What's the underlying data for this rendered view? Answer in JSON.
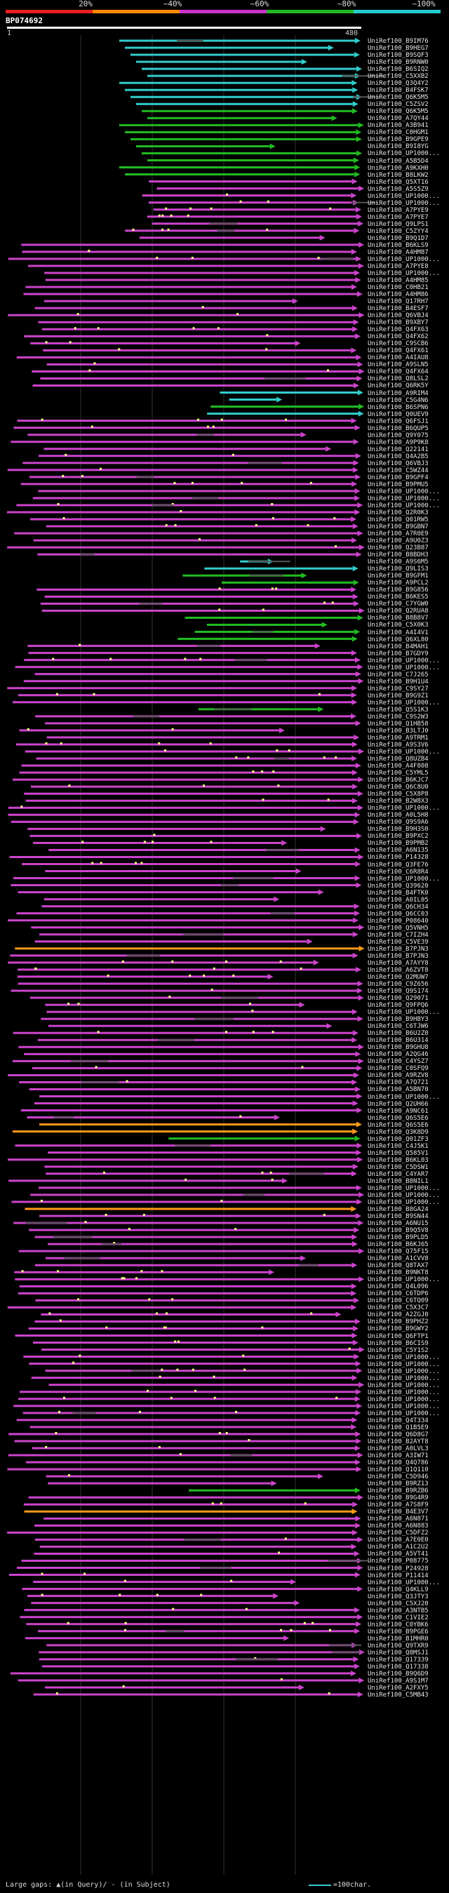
{
  "query": {
    "title": "BP074692",
    "start_label": "1",
    "end_label": "480"
  },
  "scale": {
    "labels": [
      "20%",
      "~40%",
      "~60%",
      "~80%",
      "~100%"
    ],
    "colors": [
      "#e8201f",
      "#ff8a00",
      "#cc33cc",
      "#22bb22",
      "#22cccc"
    ]
  },
  "colors": {
    "red": "#e8201f",
    "orange": "#ff9a1a",
    "purple": "#cc44cc",
    "green": "#22bb22",
    "cyan": "#33cccc",
    "gap_in_query": "#ffff88",
    "gap_in_subject": "#555555"
  },
  "legend": {
    "gaps_text": "Large gaps: ▲(in Query)/ - (in Subject)",
    "scale_text": "=100char."
  },
  "hits": [
    "UniRef100_B9IM76",
    "UniRef100_B9HEG7",
    "UniRef100_B9SQF3",
    "UniRef100_B9RNW0",
    "UniRef100_B6SIQ2",
    "UniRef100_C5XXB2",
    "UniRef100_Q3Q4Y2",
    "UniRef100_B4FSK7",
    "UniRef100_Q6K5M5",
    "UniRef100_C5ZSV2",
    "UniRef100_Q6K5M5",
    "UniRef100_A7QY44",
    "UniRef100_A3B941",
    "UniRef100_C0HGM1",
    "UniRef100_B9GPE9",
    "UniRef100_B9I8YG",
    "UniRef100_UP1000...",
    "UniRef100_A5B5D4",
    "UniRef100_A9KXH0",
    "UniRef100_B8LKW2",
    "UniRef100_Q5XT16",
    "UniRef100_A5S5Z9",
    "UniRef100_UP1000...",
    "UniRef100_UP1000...",
    "UniRef100_A7PYE9",
    "UniRef100_A7PYE7",
    "UniRef100_Q9LPS1",
    "UniRef100_C5ZYY4",
    "UniRef100_B9Q1D7",
    "UniRef100_B6KLS9",
    "UniRef100_A4HM87",
    "UniRef100_UP1000...",
    "UniRef100_A7PYE8",
    "UniRef100_UP1000...",
    "UniRef100_A4HM85",
    "UniRef100_C0HB21",
    "UniRef100_A4HM86",
    "UniRef100_Q17RH7",
    "UniRef100_B4ESF7",
    "UniRef100_Q6VBJ4",
    "UniRef100_B9XBY7",
    "UniRef100_Q4FX63",
    "UniRef100_Q4FX62",
    "UniRef100_C9SCB6",
    "UniRef100_Q4FX61",
    "UniRef100_A4IAU8",
    "UniRef100_A9SLN5",
    "UniRef100_Q4FX64",
    "UniRef100_Q8LSL2",
    "UniRef100_Q6RK5Y",
    "UniRef100_A9RIM4",
    "UniRef100_C5G4N6",
    "UniRef100_B6SPN6",
    "UniRef100_Q0UEV9",
    "UniRef100_Q6FSJ1",
    "UniRef100_B6QUP5",
    "UniRef100_Q9Y075",
    "UniRef100_A9P9K8",
    "UniRef100_Q22141",
    "UniRef100_Q4A2B5",
    "UniRef100_Q6VBJ3",
    "UniRef100_C5WZ44",
    "UniRef100_B9GPF4",
    "UniRef100_B9PMU5",
    "UniRef100_UP1000...",
    "UniRef100_UP1000...",
    "UniRef100_UP1000...",
    "UniRef100_Q2R0K3",
    "UniRef100_Q01RW5",
    "UniRef100_B9GBN7",
    "UniRef100_A7R0E9",
    "UniRef100_A9U0Z3",
    "UniRef100_Q23B87",
    "UniRef100_B8BDH3",
    "UniRef100_A9S6M5",
    "UniRef100_Q9LIS3",
    "UniRef100_B9GFM1",
    "UniRef100_A9PCL2",
    "UniRef100_B9G856",
    "UniRef100_B6KES5",
    "UniRef100_C7YGW0",
    "UniRef100_Q2RUA8",
    "UniRef100_B8B8V7",
    "UniRef100_C5X0K3",
    "UniRef100_A4I4V1",
    "UniRef100_Q6XL80",
    "UniRef100_B4MAH1",
    "UniRef100_B7GDY9",
    "UniRef100_UP1000...",
    "UniRef100_UP1000...",
    "UniRef100_C7J265",
    "UniRef100_B9H1U4",
    "UniRef100_C9SY27",
    "UniRef100_B9G9Z1",
    "UniRef100_UP1000...",
    "UniRef100_Q5S1K3",
    "UniRef100_C9S2W3",
    "UniRef100_Q1HB58",
    "UniRef100_B3LTJ0",
    "UniRef100_A9TRM1",
    "UniRef100_A9S3V6",
    "UniRef100_UP1000...",
    "UniRef100_Q8UZB4",
    "UniRef100_A4F808",
    "UniRef100_C5YML5",
    "UniRef100_B6KJC7",
    "UniRef100_Q6C8U0",
    "UniRef100_C5X8P8",
    "UniRef100_B2W8X3",
    "UniRef100_UP1000...",
    "UniRef100_A0L5H8",
    "UniRef100_Q9S9A6",
    "UniRef100_B9H3S0",
    "UniRef100_B9PXC2",
    "UniRef100_B9PMB2",
    "UniRef100_A6N135",
    "UniRef100_P14328",
    "UniRef100_Q3FE76",
    "UniRef100_C6R8R4",
    "UniRef100_UP1000...",
    "UniRef100_Q39620",
    "UniRef100_B4FTK0",
    "UniRef100_A0IL05",
    "UniRef100_Q6CH34",
    "UniRef100_Q6CC03",
    "UniRef100_P08640",
    "UniRef100_Q5VNH5",
    "UniRef100_C7IZH4",
    "UniRef100_C5VE39",
    "UniRef100_B7PJN3",
    "UniRef100_B7PJN3",
    "UniRef100_A7AYY8",
    "UniRef100_A6ZVT8",
    "UniRef100_Q2MUW7",
    "UniRef100_C9Z656",
    "UniRef100_Q9S174",
    "UniRef100_Q29071",
    "UniRef100_Q9FPQ6",
    "UniRef100_UP1000...",
    "UniRef100_B9HBY3",
    "UniRef100_C6TJW6",
    "UniRef100_B6U2Z0",
    "UniRef100_B6U314",
    "UniRef100_B9GHU8",
    "UniRef100_A2QG46",
    "UniRef100_C4YSZ7",
    "UniRef100_C0SFQ9",
    "UniRef100_A9RZV8",
    "UniRef100_A7Q721",
    "UniRef100_A5BN70",
    "UniRef100_UP1000...",
    "UniRef100_Q2UH66",
    "UniRef100_A9NC61",
    "UniRef100_Q6S5E6",
    "UniRef100_Q6S5E6",
    "UniRef100_Q3K8D9",
    "UniRef100_Q01ZF3",
    "UniRef100_C4J5K1",
    "UniRef100_Q585V1",
    "UniRef100_B6KL03",
    "UniRef100_C5DSW1",
    "UniRef100_C4YAR7",
    "UniRef100_B8NIL1",
    "UniRef100_UP1000...",
    "UniRef100_UP1000...",
    "UniRef100_UP1000...",
    "UniRef100_B8GA24",
    "UniRef100_B9SN44",
    "UniRef100_A6NU15",
    "UniRef100_B9Q5V8",
    "UniRef100_B9PLD5",
    "UniRef100_B6KJ65",
    "UniRef100_Q75F15",
    "UniRef100_A1CVV8",
    "UniRef100_Q8TAX7",
    "UniRef100_B9NKT8",
    "UniRef100_UP1000...",
    "UniRef100_Q4L096",
    "UniRef100_C6TDP6",
    "UniRef100_C6TQ09",
    "UniRef100_C5X3C7",
    "UniRef100_A2ZGJ0",
    "UniRef100_B9PHZ2",
    "UniRef100_B9GWY2",
    "UniRef100_Q6FTP1",
    "UniRef100_B6CIS9",
    "UniRef100_C5Y1S2",
    "UniRef100_UP1000...",
    "UniRef100_UP1000...",
    "UniRef100_UP1000...",
    "UniRef100_UP1000...",
    "UniRef100_UP1000...",
    "UniRef100_UP1000...",
    "UniRef100_UP1000...",
    "UniRef100_UP1000...",
    "UniRef100_UP1000...",
    "UniRef100_Q4T334",
    "UniRef100_Q1B5E9",
    "UniRef100_Q6D8G7",
    "UniRef100_B2AYT8",
    "UniRef100_A0LVL3",
    "UniRef100_A3IW71",
    "UniRef100_Q4Q786",
    "UniRef100_Q1Q110",
    "UniRef100_C5D946",
    "UniRef100_B9RZ13",
    "UniRef100_B9RZB6",
    "UniRef100_B9G4R9",
    "UniRef100_A7S8F9",
    "UniRef100_B4E3V7",
    "UniRef100_A6N871",
    "UniRef100_A6N883",
    "UniRef100_C5DFZ2",
    "UniRef100_A7E0E0",
    "UniRef100_A1C2U2",
    "UniRef100_A5VT41",
    "UniRef100_P08775",
    "UniRef100_P24928",
    "UniRef100_P11414",
    "UniRef100_UP1000...",
    "UniRef100_Q4KLL9",
    "UniRef100_Q3JTY3",
    "UniRef100_C5XJ20",
    "UniRef100_A3NTB5",
    "UniRef100_C1VIE2",
    "UniRef100_C0YBK6",
    "UniRef100_B9PGE6",
    "UniRef100_B1MHR0",
    "UniRef100_Q9TXR9",
    "UniRef100_Q8MSJ1",
    "UniRef100_Q17339",
    "UniRef100_Q17338",
    "UniRef100_B9Q6D9",
    "UniRef100_A9S1M7",
    "UniRef100_A2FXY5",
    "UniRef100_C5MB43"
  ]
}
